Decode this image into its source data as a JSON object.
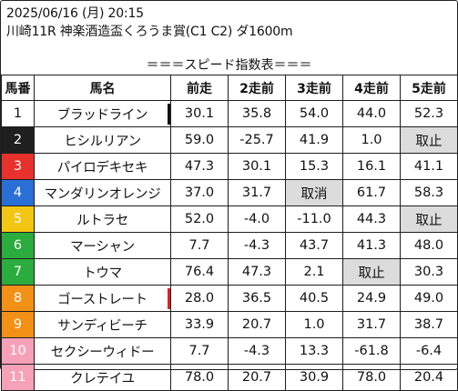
{
  "header": {
    "datetime": "2025/06/16 (月) 20:15",
    "race": "川崎11R 神楽酒造盃くろうま賞(C1 C2) ダ1600m"
  },
  "banner": "＝＝＝スピード指数表＝＝＝",
  "columns": [
    "馬番",
    "馬名",
    "前走",
    "2走前",
    "3走前",
    "4走前",
    "5走前"
  ],
  "colors": {
    "waku_1": "#ffffff",
    "waku_2": "#1f1f1f",
    "waku_3": "#e8312c",
    "waku_4": "#2a6fd6",
    "waku_5": "#f3c613",
    "waku_6": "#2bac3e",
    "waku_7": "#f39016",
    "waku_8": "#f7a1b9",
    "note_cell": "#dcdcdc",
    "mark_black": "#111111",
    "mark_red": "#e02020"
  },
  "rows": [
    {
      "num": "1",
      "waku": 1,
      "name": "ブラッドライン",
      "mark": "black",
      "r1": "30.1",
      "r2": "35.8",
      "r3": "54.0",
      "r4": "44.0",
      "r5": "52.3"
    },
    {
      "num": "2",
      "waku": 2,
      "name": "ヒシルリアン",
      "mark": "",
      "r1": "59.0",
      "r2": "-25.7",
      "r3": "41.9",
      "r4": "1.0",
      "r5": "取止"
    },
    {
      "num": "3",
      "waku": 3,
      "name": "パイロデキセキ",
      "mark": "",
      "r1": "47.3",
      "r2": "30.1",
      "r3": "15.3",
      "r4": "16.1",
      "r5": "41.1"
    },
    {
      "num": "4",
      "waku": 4,
      "name": "マンダリンオレンジ",
      "mark": "",
      "r1": "37.0",
      "r2": "31.7",
      "r3": "取消",
      "r4": "61.7",
      "r5": "58.3"
    },
    {
      "num": "5",
      "waku": 5,
      "name": "ルトラセ",
      "mark": "",
      "r1": "52.0",
      "r2": "-4.0",
      "r3": "-11.0",
      "r4": "44.3",
      "r5": "取止"
    },
    {
      "num": "6",
      "waku": 6,
      "name": "マーシャン",
      "mark": "",
      "r1": "7.7",
      "r2": "-4.3",
      "r3": "43.7",
      "r4": "41.3",
      "r5": "48.0"
    },
    {
      "num": "7",
      "waku": 6,
      "name": "トウマ",
      "mark": "",
      "r1": "76.4",
      "r2": "47.3",
      "r3": "2.1",
      "r4": "取止",
      "r5": "30.3"
    },
    {
      "num": "8",
      "waku": 7,
      "name": "ゴーストレート",
      "mark": "red",
      "r1": "28.0",
      "r2": "36.5",
      "r3": "40.5",
      "r4": "24.9",
      "r5": "49.0"
    },
    {
      "num": "9",
      "waku": 7,
      "name": "サンディビーチ",
      "mark": "",
      "r1": "33.9",
      "r2": "20.7",
      "r3": "1.0",
      "r4": "31.7",
      "r5": "38.7"
    },
    {
      "num": "10",
      "waku": 8,
      "name": "セクシーウィドー",
      "mark": "",
      "r1": "7.7",
      "r2": "-4.3",
      "r3": "13.3",
      "r4": "-61.8",
      "r5": "-6.4"
    },
    {
      "num": "11",
      "waku": 8,
      "name": "クレテイユ",
      "mark": "",
      "r1": "78.0",
      "r2": "20.7",
      "r3": "30.9",
      "r4": "78.0",
      "r5": "20.4"
    }
  ]
}
